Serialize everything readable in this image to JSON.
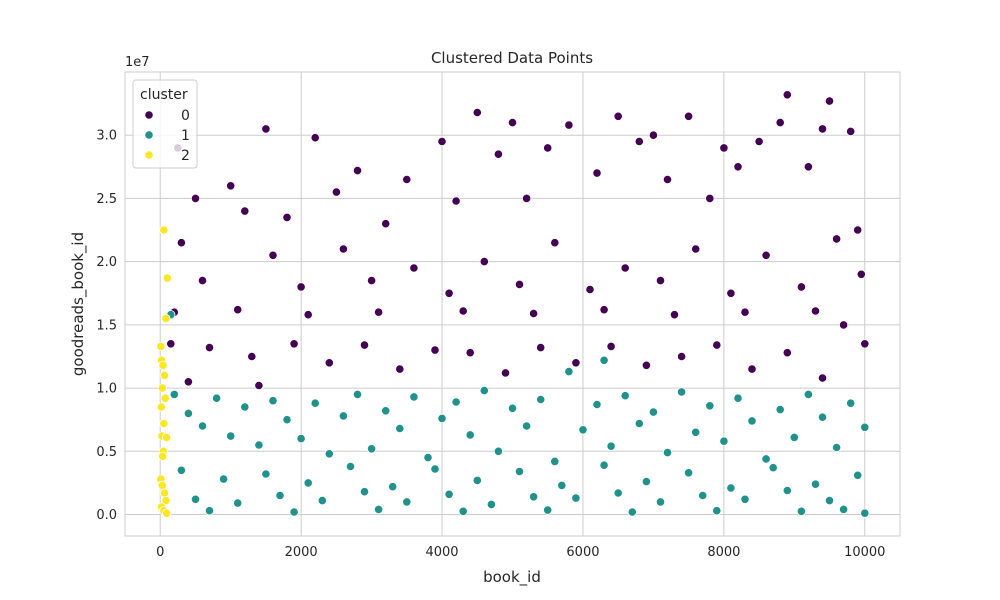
{
  "chart_data": {
    "type": "scatter",
    "title": "Clustered Data Points",
    "xlabel": "book_id",
    "ylabel": "goodreads_book_id",
    "y_offset_label": "1e7",
    "xlim": [
      -500,
      10500
    ],
    "ylim": [
      -1700000,
      35000000
    ],
    "x_ticks": [
      0,
      2000,
      4000,
      6000,
      8000,
      10000
    ],
    "x_tick_labels": [
      "0",
      "2000",
      "4000",
      "6000",
      "8000",
      "10000"
    ],
    "y_ticks": [
      0,
      5000000,
      10000000,
      15000000,
      20000000,
      25000000,
      30000000
    ],
    "y_tick_labels": [
      "0.0",
      "0.5",
      "1.0",
      "1.5",
      "2.0",
      "2.5",
      "3.0"
    ],
    "grid": true,
    "legend": {
      "title": "cluster",
      "position": "top-left",
      "entries": [
        "0",
        "1",
        "2"
      ]
    },
    "series": [
      {
        "name": "0",
        "color": "#440154",
        "points": [
          [
            250,
            29000000
          ],
          [
            500,
            25000000
          ],
          [
            1000,
            26000000
          ],
          [
            1200,
            24000000
          ],
          [
            1500,
            30500000
          ],
          [
            1800,
            23500000
          ],
          [
            2200,
            29800000
          ],
          [
            2500,
            25500000
          ],
          [
            2800,
            27200000
          ],
          [
            3200,
            23000000
          ],
          [
            3500,
            26500000
          ],
          [
            4000,
            29500000
          ],
          [
            4200,
            24800000
          ],
          [
            4500,
            31800000
          ],
          [
            4800,
            28500000
          ],
          [
            5000,
            31000000
          ],
          [
            5200,
            25000000
          ],
          [
            5500,
            29000000
          ],
          [
            5800,
            30800000
          ],
          [
            6200,
            27000000
          ],
          [
            6500,
            31500000
          ],
          [
            6800,
            29500000
          ],
          [
            7000,
            30000000
          ],
          [
            7200,
            26500000
          ],
          [
            7500,
            31500000
          ],
          [
            7800,
            25000000
          ],
          [
            8000,
            29000000
          ],
          [
            8200,
            27500000
          ],
          [
            8500,
            29500000
          ],
          [
            8800,
            31000000
          ],
          [
            8900,
            33200000
          ],
          [
            9200,
            27500000
          ],
          [
            9400,
            30500000
          ],
          [
            9500,
            32700000
          ],
          [
            9800,
            30300000
          ],
          [
            9900,
            22500000
          ],
          [
            300,
            21500000
          ],
          [
            1600,
            20500000
          ],
          [
            2600,
            21000000
          ],
          [
            3600,
            19500000
          ],
          [
            4600,
            20000000
          ],
          [
            5600,
            21500000
          ],
          [
            6600,
            19500000
          ],
          [
            7600,
            21000000
          ],
          [
            8600,
            20500000
          ],
          [
            9600,
            21800000
          ],
          [
            600,
            18500000
          ],
          [
            2000,
            18000000
          ],
          [
            3000,
            18500000
          ],
          [
            4100,
            17500000
          ],
          [
            5100,
            18200000
          ],
          [
            6100,
            17800000
          ],
          [
            7100,
            18500000
          ],
          [
            8100,
            17500000
          ],
          [
            9100,
            18000000
          ],
          [
            9950,
            19000000
          ],
          [
            200,
            16000000
          ],
          [
            1100,
            16200000
          ],
          [
            2100,
            15800000
          ],
          [
            3100,
            16000000
          ],
          [
            4300,
            16100000
          ],
          [
            5300,
            15900000
          ],
          [
            6300,
            16200000
          ],
          [
            7300,
            15800000
          ],
          [
            8300,
            16000000
          ],
          [
            9300,
            16100000
          ],
          [
            150,
            13500000
          ],
          [
            700,
            13200000
          ],
          [
            1300,
            12500000
          ],
          [
            1900,
            13500000
          ],
          [
            2400,
            12000000
          ],
          [
            2900,
            13400000
          ],
          [
            3400,
            11500000
          ],
          [
            3900,
            13000000
          ],
          [
            4400,
            12800000
          ],
          [
            4900,
            11200000
          ],
          [
            5400,
            13200000
          ],
          [
            5900,
            12000000
          ],
          [
            6400,
            13300000
          ],
          [
            6900,
            11800000
          ],
          [
            7400,
            12500000
          ],
          [
            7900,
            13400000
          ],
          [
            8400,
            11500000
          ],
          [
            8900,
            12800000
          ],
          [
            9400,
            10800000
          ],
          [
            10000,
            13500000
          ],
          [
            9700,
            15000000
          ],
          [
            400,
            10500000
          ],
          [
            1400,
            10200000
          ]
        ]
      },
      {
        "name": "1",
        "color": "#21918c",
        "points": [
          [
            150,
            15800000
          ],
          [
            200,
            9500000
          ],
          [
            400,
            8000000
          ],
          [
            600,
            7000000
          ],
          [
            800,
            9200000
          ],
          [
            1000,
            6200000
          ],
          [
            1200,
            8500000
          ],
          [
            1400,
            5500000
          ],
          [
            1600,
            9000000
          ],
          [
            1800,
            7500000
          ],
          [
            2000,
            6000000
          ],
          [
            2200,
            8800000
          ],
          [
            2400,
            4800000
          ],
          [
            2600,
            7800000
          ],
          [
            2800,
            9500000
          ],
          [
            3000,
            5200000
          ],
          [
            3200,
            8200000
          ],
          [
            3400,
            6800000
          ],
          [
            3600,
            9300000
          ],
          [
            3800,
            4500000
          ],
          [
            4000,
            7600000
          ],
          [
            4200,
            8900000
          ],
          [
            4400,
            6300000
          ],
          [
            4600,
            9800000
          ],
          [
            4800,
            5000000
          ],
          [
            5000,
            8400000
          ],
          [
            5200,
            7000000
          ],
          [
            5400,
            9100000
          ],
          [
            5600,
            4200000
          ],
          [
            5800,
            11300000
          ],
          [
            6000,
            6700000
          ],
          [
            6200,
            8700000
          ],
          [
            6300,
            12200000
          ],
          [
            6400,
            5400000
          ],
          [
            6600,
            9400000
          ],
          [
            6800,
            7200000
          ],
          [
            7000,
            8100000
          ],
          [
            7200,
            4900000
          ],
          [
            7400,
            9700000
          ],
          [
            7600,
            6500000
          ],
          [
            7800,
            8600000
          ],
          [
            8000,
            5800000
          ],
          [
            8200,
            9200000
          ],
          [
            8400,
            7400000
          ],
          [
            8600,
            4400000
          ],
          [
            8800,
            8300000
          ],
          [
            9000,
            6100000
          ],
          [
            9200,
            9500000
          ],
          [
            9400,
            7700000
          ],
          [
            9600,
            5300000
          ],
          [
            9800,
            8800000
          ],
          [
            10000,
            6900000
          ],
          [
            300,
            3500000
          ],
          [
            900,
            2800000
          ],
          [
            1500,
            3200000
          ],
          [
            2100,
            2500000
          ],
          [
            2700,
            3800000
          ],
          [
            3300,
            2200000
          ],
          [
            3900,
            3600000
          ],
          [
            4500,
            2700000
          ],
          [
            5100,
            3400000
          ],
          [
            5700,
            2300000
          ],
          [
            6300,
            3900000
          ],
          [
            6900,
            2600000
          ],
          [
            7500,
            3300000
          ],
          [
            8100,
            2100000
          ],
          [
            8700,
            3700000
          ],
          [
            9300,
            2400000
          ],
          [
            9900,
            3100000
          ],
          [
            500,
            1200000
          ],
          [
            1100,
            900000
          ],
          [
            1700,
            1500000
          ],
          [
            2300,
            1100000
          ],
          [
            2900,
            1800000
          ],
          [
            3500,
            1000000
          ],
          [
            4100,
            1600000
          ],
          [
            4700,
            800000
          ],
          [
            5300,
            1400000
          ],
          [
            5900,
            1300000
          ],
          [
            6500,
            1700000
          ],
          [
            7100,
            1000000
          ],
          [
            7700,
            1500000
          ],
          [
            8300,
            1200000
          ],
          [
            8900,
            1900000
          ],
          [
            9500,
            1100000
          ],
          [
            10000,
            100000
          ],
          [
            700,
            300000
          ],
          [
            1900,
            200000
          ],
          [
            3100,
            400000
          ],
          [
            4300,
            250000
          ],
          [
            5500,
            350000
          ],
          [
            6700,
            200000
          ],
          [
            7900,
            300000
          ],
          [
            9100,
            250000
          ],
          [
            9700,
            400000
          ]
        ]
      },
      {
        "name": "2",
        "color": "#fde725",
        "points": [
          [
            50,
            22500000
          ],
          [
            100,
            18700000
          ],
          [
            80,
            15500000
          ],
          [
            10,
            13300000
          ],
          [
            20,
            12200000
          ],
          [
            40,
            11800000
          ],
          [
            60,
            11000000
          ],
          [
            30,
            10000000
          ],
          [
            70,
            9200000
          ],
          [
            15,
            8500000
          ],
          [
            50,
            7200000
          ],
          [
            25,
            6200000
          ],
          [
            90,
            6100000
          ],
          [
            45,
            5000000
          ],
          [
            35,
            4600000
          ],
          [
            10,
            2800000
          ],
          [
            30,
            2300000
          ],
          [
            60,
            1700000
          ],
          [
            80,
            1100000
          ],
          [
            20,
            600000
          ],
          [
            50,
            300000
          ],
          [
            90,
            100000
          ]
        ]
      }
    ]
  }
}
